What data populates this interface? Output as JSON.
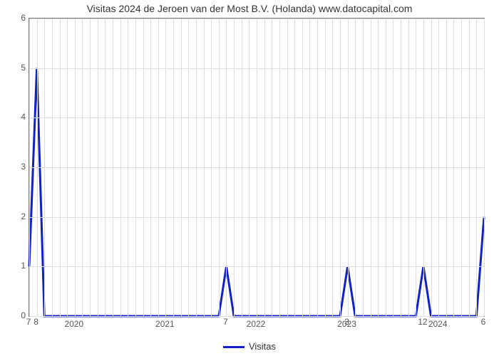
{
  "chart": {
    "type": "line",
    "title": "Visitas 2024 de Jeroen van der Most B.V. (Holanda) www.datocapital.com",
    "title_fontsize": 14,
    "title_color": "#333333",
    "background_color": "#ffffff",
    "plot_border_color": "#777777",
    "grid_color": "#dddddd",
    "line_color": "#1220c8",
    "line_width": 3,
    "xlim": [
      0,
      60
    ],
    "ylim": [
      0,
      6
    ],
    "yticks": [
      0,
      1,
      2,
      3,
      4,
      5,
      6
    ],
    "xticks": [
      {
        "pos": 6,
        "label": "2020"
      },
      {
        "pos": 18,
        "label": "2021"
      },
      {
        "pos": 30,
        "label": "2022"
      },
      {
        "pos": 42,
        "label": "2023"
      },
      {
        "pos": 54,
        "label": "2024"
      }
    ],
    "series": {
      "name": "Visitas",
      "points": [
        {
          "x": 0,
          "y": 1
        },
        {
          "x": 1,
          "y": 5
        },
        {
          "x": 2,
          "y": 0
        },
        {
          "x": 25,
          "y": 0
        },
        {
          "x": 26,
          "y": 1
        },
        {
          "x": 27,
          "y": 0
        },
        {
          "x": 41,
          "y": 0
        },
        {
          "x": 42,
          "y": 1
        },
        {
          "x": 43,
          "y": 0
        },
        {
          "x": 51,
          "y": 0
        },
        {
          "x": 52,
          "y": 1
        },
        {
          "x": 53,
          "y": 0
        },
        {
          "x": 59,
          "y": 0
        },
        {
          "x": 60,
          "y": 2
        }
      ]
    },
    "point_labels": [
      {
        "x": 0,
        "text": "7",
        "below": true
      },
      {
        "x": 1,
        "text": "8",
        "below": true
      },
      {
        "x": 26,
        "text": "7",
        "below": true
      },
      {
        "x": 42,
        "text": "3",
        "below": true
      },
      {
        "x": 52,
        "text": "12",
        "below": true
      },
      {
        "x": 60,
        "text": "6",
        "below": true
      }
    ],
    "legend_label": "Visitas",
    "tick_fontsize": 12,
    "tick_color": "#555555"
  }
}
